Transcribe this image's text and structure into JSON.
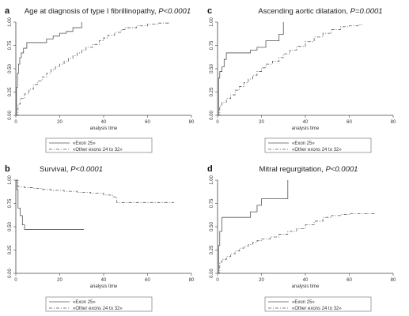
{
  "chart_data": [
    {
      "type": "line",
      "panel": "a",
      "title": "Age at diagnosis of type I fibrillinopathy, ",
      "pvalue": "P<0.0001",
      "xlabel": "analysis time",
      "ylabel": "",
      "xlim": [
        0,
        80
      ],
      "ylim": [
        0,
        1
      ],
      "xticks": [
        "0",
        "20",
        "40",
        "60",
        "80"
      ],
      "yticks": [
        "0.00",
        "0.25",
        "0.50",
        "0.75",
        "1.00"
      ],
      "legend": [
        "«Exon 25»",
        "«Other exons 24 to 32»"
      ],
      "legend_position": "bottom",
      "series": [
        {
          "name": "«Exon 25»",
          "style": "solid",
          "x": [
            0,
            0.3,
            0.7,
            1.2,
            1.8,
            2.5,
            3.5,
            5,
            10,
            14,
            17,
            20,
            23,
            26,
            30
          ],
          "y": [
            0,
            0.3,
            0.45,
            0.55,
            0.62,
            0.67,
            0.72,
            0.78,
            0.78,
            0.82,
            0.85,
            0.88,
            0.9,
            0.94,
            1.0
          ]
        },
        {
          "name": "«Other exons 24 to 32»",
          "style": "dash-dot",
          "x": [
            0,
            1,
            2,
            4,
            6,
            8,
            10,
            12,
            14,
            16,
            18,
            20,
            22,
            24,
            26,
            28,
            30,
            32,
            35,
            38,
            40,
            42,
            45,
            48,
            50,
            55,
            60,
            65,
            70
          ],
          "y": [
            0,
            0.12,
            0.18,
            0.23,
            0.28,
            0.33,
            0.37,
            0.41,
            0.45,
            0.49,
            0.52,
            0.55,
            0.58,
            0.61,
            0.64,
            0.67,
            0.7,
            0.73,
            0.76,
            0.8,
            0.83,
            0.86,
            0.89,
            0.92,
            0.94,
            0.96,
            0.98,
            0.99,
            1.0
          ]
        }
      ]
    },
    {
      "type": "line",
      "panel": "c",
      "title": "Ascending aortic dilatation, ",
      "pvalue": "P=0.0001",
      "xlabel": "analysis time",
      "ylabel": "",
      "xlim": [
        0,
        80
      ],
      "ylim": [
        0,
        1
      ],
      "xticks": [
        "0",
        "20",
        "40",
        "60",
        "80"
      ],
      "yticks": [
        "0.00",
        "0.25",
        "0.50",
        "0.75",
        "1.00"
      ],
      "legend": [
        "«Exon 25»",
        "«Other exons 24 to 32»"
      ],
      "legend_position": "bottom",
      "series": [
        {
          "name": "«Exon 25»",
          "style": "solid",
          "x": [
            0,
            0.5,
            1,
            2,
            3,
            4,
            8,
            12,
            15,
            18,
            22,
            26,
            28,
            30
          ],
          "y": [
            0,
            0.4,
            0.47,
            0.52,
            0.6,
            0.67,
            0.67,
            0.67,
            0.7,
            0.73,
            0.8,
            0.8,
            0.87,
            1.0
          ]
        },
        {
          "name": "«Other exons 24 to 32»",
          "style": "dash-dot",
          "x": [
            0,
            1,
            2,
            4,
            6,
            8,
            10,
            12,
            14,
            16,
            18,
            20,
            22,
            25,
            28,
            30,
            33,
            36,
            40,
            44,
            48,
            52,
            56,
            60,
            64,
            66
          ],
          "y": [
            0,
            0.1,
            0.14,
            0.18,
            0.22,
            0.27,
            0.31,
            0.35,
            0.39,
            0.43,
            0.47,
            0.51,
            0.55,
            0.58,
            0.62,
            0.66,
            0.7,
            0.74,
            0.79,
            0.84,
            0.88,
            0.92,
            0.95,
            0.96,
            0.97,
            0.97
          ]
        }
      ]
    },
    {
      "type": "line",
      "panel": "b",
      "title": "Survival, ",
      "pvalue": "P<0.0001",
      "xlabel": "analysis time",
      "ylabel": "",
      "xlim": [
        0,
        80
      ],
      "ylim": [
        0,
        1
      ],
      "xticks": [
        "0",
        "20",
        "40",
        "60",
        "80"
      ],
      "yticks": [
        "0.00",
        "0.25",
        "0.50",
        "0.75",
        "1.00"
      ],
      "legend": [
        "«Exon 25»",
        "«Other exons 24 to 32»"
      ],
      "legend_position": "bottom",
      "series": [
        {
          "name": "«Exon 25»",
          "style": "solid",
          "x": [
            0,
            0.5,
            1,
            2,
            3,
            4,
            31
          ],
          "y": [
            1.0,
            0.9,
            0.7,
            0.62,
            0.52,
            0.47,
            0.47
          ]
        },
        {
          "name": "«Other exons 24 to 32»",
          "style": "dash-dot",
          "x": [
            0,
            1,
            4,
            8,
            12,
            16,
            22,
            28,
            34,
            40,
            44,
            46,
            55,
            65,
            72
          ],
          "y": [
            1.0,
            0.93,
            0.92,
            0.91,
            0.9,
            0.89,
            0.88,
            0.87,
            0.86,
            0.84,
            0.82,
            0.76,
            0.76,
            0.76,
            0.76
          ]
        }
      ]
    },
    {
      "type": "line",
      "panel": "d",
      "title": "Mitral regurgitation, ",
      "pvalue": "P<0.0001",
      "xlabel": "analysis time",
      "ylabel": "",
      "xlim": [
        0,
        80
      ],
      "ylim": [
        0,
        1
      ],
      "xticks": [
        "0",
        "20",
        "40",
        "60",
        "80"
      ],
      "yticks": [
        "0.00",
        "0.25",
        "0.50",
        "0.75",
        "1.00"
      ],
      "legend": [
        "«Exon 25»",
        "«Other exons 24 to 32»"
      ],
      "legend_position": "bottom",
      "series": [
        {
          "name": "«Exon 25»",
          "style": "solid",
          "x": [
            0,
            0.5,
            1,
            2,
            12,
            15,
            18,
            20,
            25,
            30,
            32
          ],
          "y": [
            0,
            0.3,
            0.45,
            0.6,
            0.6,
            0.66,
            0.73,
            0.8,
            0.8,
            0.8,
            1.0
          ]
        },
        {
          "name": "«Other exons 24 to 32»",
          "style": "dash-dot",
          "x": [
            0,
            1,
            2,
            4,
            6,
            8,
            10,
            12,
            14,
            16,
            18,
            20,
            24,
            28,
            32,
            36,
            40,
            44,
            48,
            52,
            56,
            60,
            66,
            72
          ],
          "y": [
            0,
            0.12,
            0.15,
            0.18,
            0.21,
            0.24,
            0.27,
            0.29,
            0.31,
            0.33,
            0.35,
            0.37,
            0.39,
            0.42,
            0.45,
            0.48,
            0.52,
            0.56,
            0.6,
            0.62,
            0.63,
            0.64,
            0.64,
            0.64
          ]
        }
      ]
    }
  ]
}
